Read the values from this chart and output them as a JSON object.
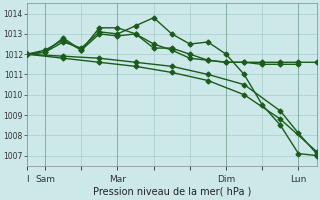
{
  "xlabel": "Pression niveau de la mer( hPa )",
  "ylim": [
    1006.5,
    1014.5
  ],
  "yticks": [
    1007,
    1008,
    1009,
    1010,
    1011,
    1012,
    1013,
    1014
  ],
  "bg_color": "#cce8e8",
  "grid_color": "#aacccc",
  "line_color": "#1a5c1a",
  "xlim": [
    0,
    16
  ],
  "xtick_labels": [
    "I",
    "Sam",
    "",
    "Mar",
    "",
    "",
    "Dim",
    "",
    "Lun"
  ],
  "xtick_positions": [
    0,
    1,
    3,
    5,
    7,
    9,
    11,
    13,
    15
  ],
  "vlines": [
    1,
    5,
    11,
    15
  ],
  "series": [
    {
      "x": [
        0,
        1,
        2,
        3,
        4,
        5,
        6,
        7,
        8,
        9,
        10,
        11,
        12,
        13,
        14,
        15,
        16
      ],
      "y": [
        1012.0,
        1012.1,
        1012.6,
        1012.3,
        1013.1,
        1013.0,
        1013.4,
        1013.8,
        1013.0,
        1012.5,
        1012.6,
        1012.0,
        1011.0,
        1009.5,
        1008.5,
        1007.1,
        1007.0
      ]
    },
    {
      "x": [
        0,
        1,
        2,
        3,
        4,
        5,
        6,
        7,
        8,
        9,
        10,
        11,
        12,
        13,
        14,
        15,
        16
      ],
      "y": [
        1012.0,
        1012.2,
        1012.7,
        1012.2,
        1013.3,
        1013.3,
        1013.0,
        1012.5,
        1012.2,
        1011.8,
        1011.7,
        1011.6,
        1011.6,
        1011.6,
        1011.6,
        1011.6,
        1011.6
      ]
    },
    {
      "x": [
        0,
        1,
        2,
        3,
        4,
        5,
        6,
        7,
        8,
        9,
        10,
        11,
        12,
        13,
        14,
        15
      ],
      "y": [
        1012.0,
        1012.1,
        1012.8,
        1012.2,
        1013.0,
        1012.9,
        1013.0,
        1012.3,
        1012.3,
        1012.0,
        1011.7,
        1011.6,
        1011.6,
        1011.5,
        1011.5,
        1011.5
      ]
    },
    {
      "x": [
        0,
        2,
        4,
        6,
        8,
        10,
        12,
        14,
        16
      ],
      "y": [
        1012.0,
        1011.8,
        1011.6,
        1011.4,
        1011.1,
        1010.7,
        1010.0,
        1008.8,
        1007.2
      ]
    },
    {
      "x": [
        0,
        2,
        4,
        6,
        8,
        10,
        12,
        14,
        15,
        16
      ],
      "y": [
        1012.0,
        1011.9,
        1011.8,
        1011.6,
        1011.4,
        1011.0,
        1010.5,
        1009.2,
        1008.1,
        1007.1
      ]
    }
  ]
}
